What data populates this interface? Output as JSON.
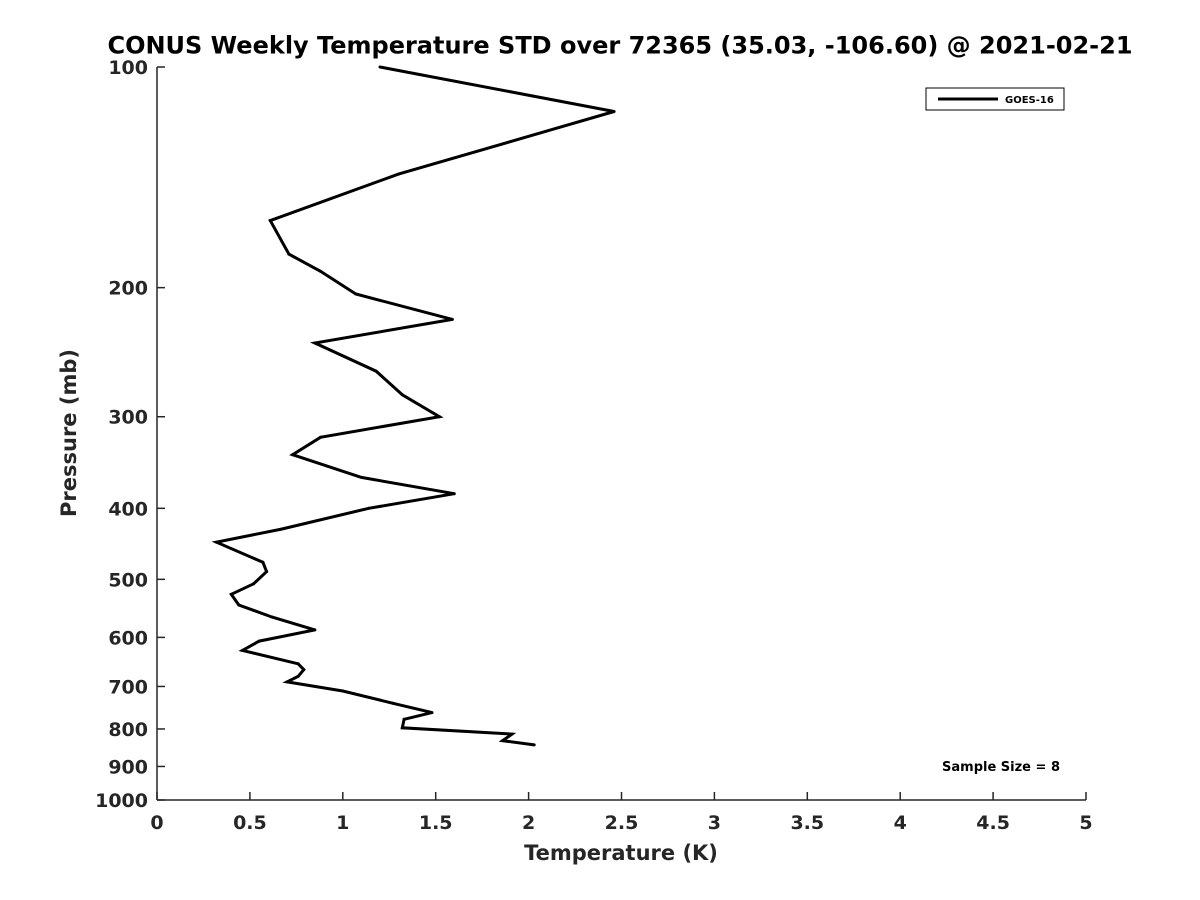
{
  "chart_data": {
    "type": "line",
    "title": "CONUS Weekly Temperature STD over 72365 (35.03, -106.60) @ 2021-02-21",
    "xlabel": "Temperature (K)",
    "ylabel": "Pressure (mb)",
    "xlim": [
      0,
      5
    ],
    "ylim": [
      100,
      1000
    ],
    "y_scale": "log",
    "y_reversed": true,
    "x_ticks": [
      "0",
      "0.5",
      "1",
      "1.5",
      "2",
      "2.5",
      "3",
      "3.5",
      "4",
      "4.5",
      "5"
    ],
    "y_ticks": [
      "100",
      "200",
      "300",
      "400",
      "500",
      "600",
      "700",
      "800",
      "900",
      "1000"
    ],
    "grid": false,
    "legend_position": "top-right",
    "series": [
      {
        "name": "GOES-16",
        "color": "#000000",
        "x": [
          1.2,
          2.46,
          1.3,
          0.61,
          0.71,
          0.88,
          1.07,
          1.59,
          0.85,
          1.18,
          1.32,
          1.52,
          0.88,
          0.73,
          1.1,
          1.6,
          1.14,
          0.67,
          0.32,
          0.57,
          0.59,
          0.52,
          0.4,
          0.44,
          0.62,
          0.85,
          0.55,
          0.46,
          0.76,
          0.79,
          0.76,
          0.7,
          1.0,
          1.27,
          1.48,
          1.33,
          1.32,
          1.91,
          1.86,
          2.03
        ],
        "y": [
          100,
          115,
          140,
          162,
          180,
          190,
          204,
          221,
          238,
          260,
          280,
          300,
          320,
          338,
          363,
          382,
          400,
          427,
          445,
          474,
          488,
          507,
          524,
          542,
          563,
          586,
          607,
          625,
          652,
          664,
          678,
          690,
          710,
          738,
          760,
          776,
          797,
          813,
          830,
          841
        ]
      }
    ],
    "annotations": [
      "Sample Size = 8"
    ]
  }
}
